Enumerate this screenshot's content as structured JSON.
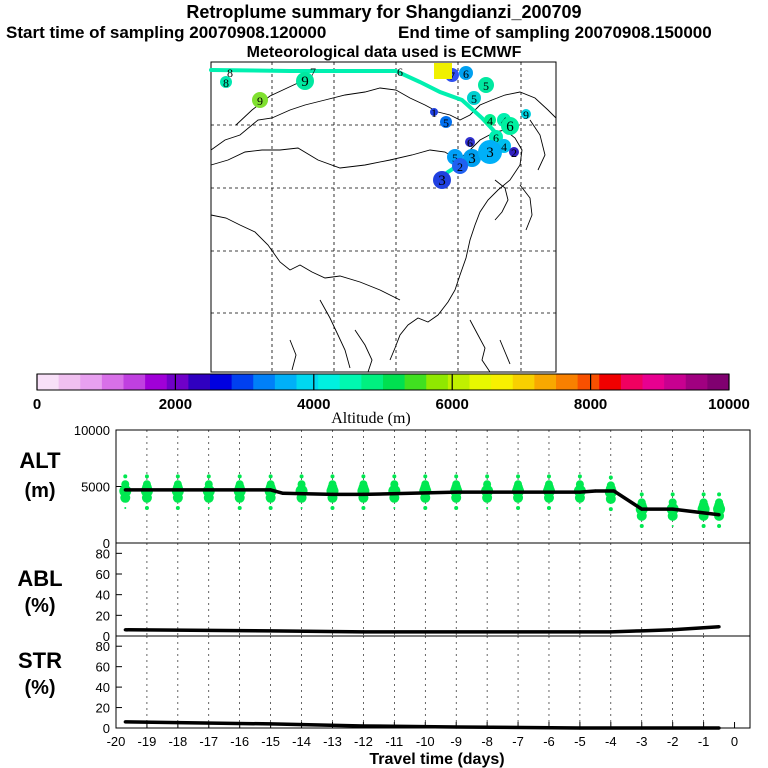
{
  "header": {
    "title": "Retroplume summary for Shangdianzi_200709",
    "start": "Start time of sampling 20070908.120000",
    "end": "End time of sampling 20070908.150000",
    "met": "Meteorological data used is ECMWF"
  },
  "colorbar": {
    "label": "Altitude  (m)",
    "ticks": [
      "0",
      "2000",
      "4000",
      "6000",
      "8000",
      "10000"
    ],
    "colors": [
      "#f8e0f8",
      "#f0c0f0",
      "#e8a0f0",
      "#d870e8",
      "#c040e0",
      "#a000d8",
      "#7000c8",
      "#3000c0",
      "#0000e0",
      "#0040f0",
      "#0080f8",
      "#00b0f8",
      "#00d8f0",
      "#00f0e0",
      "#00f8b0",
      "#00f080",
      "#00e050",
      "#40e020",
      "#90e800",
      "#c0f000",
      "#e8f800",
      "#f8f000",
      "#f8d000",
      "#f8a800",
      "#f88000",
      "#f85000",
      "#f00000",
      "#f00060",
      "#e80090",
      "#c80090",
      "#a00080",
      "#800070"
    ]
  },
  "map": {
    "back_labels": [
      "8",
      "6",
      "7",
      "8",
      "6",
      "6",
      "5",
      "7",
      "9",
      "9",
      "5",
      "5",
      "4",
      "4",
      "9",
      "6",
      "5",
      "6",
      "4",
      "3",
      "3",
      "2",
      "3",
      "2",
      "1"
    ]
  },
  "chart_data": [
    {
      "type": "line",
      "panel": "ALT",
      "ylabel": "ALT\n(m)",
      "ylabel_lines": [
        "ALT",
        "(m)"
      ],
      "ylim": [
        0,
        10000
      ],
      "yticks": [
        "10000",
        "5000",
        "0"
      ],
      "x": [
        -19.7,
        -15,
        -14.6,
        -13,
        -12,
        -9,
        -8,
        -5,
        -4.5,
        -3.9,
        -3,
        -2,
        -0.5
      ],
      "values": [
        4700,
        4700,
        4400,
        4300,
        4300,
        4500,
        4500,
        4500,
        4600,
        4600,
        3000,
        3000,
        2500
      ]
    },
    {
      "type": "line",
      "panel": "ABL",
      "ylabel_lines": [
        "ABL",
        "(%)"
      ],
      "ylim": [
        0,
        90
      ],
      "yticks": [
        "80",
        "60",
        "40",
        "20",
        "0"
      ],
      "x": [
        -19.7,
        -15,
        -12,
        -9,
        -5,
        -4,
        -3,
        -2,
        -1,
        -0.5
      ],
      "values": [
        6,
        5,
        4,
        4,
        4,
        4,
        5,
        6,
        8,
        9
      ]
    },
    {
      "type": "line",
      "panel": "STR",
      "ylabel_lines": [
        "STR",
        "(%)"
      ],
      "ylim": [
        0,
        90
      ],
      "yticks": [
        "80",
        "60",
        "40",
        "20",
        "0"
      ],
      "x": [
        -19.7,
        -15,
        -12,
        -9,
        -5,
        -3,
        -1,
        -0.5
      ],
      "values": [
        6,
        4,
        2,
        1,
        0,
        0,
        0,
        0
      ]
    }
  ],
  "xaxis": {
    "label": "Travel time (days)",
    "ticks": [
      "-20",
      "-19",
      "-18",
      "-17",
      "-16",
      "-15",
      "-14",
      "-13",
      "-12",
      "-11",
      "-10",
      "-9",
      "-8",
      "-7",
      "-6",
      "-5",
      "-4",
      "-3",
      "-2",
      "-1",
      "0"
    ]
  }
}
